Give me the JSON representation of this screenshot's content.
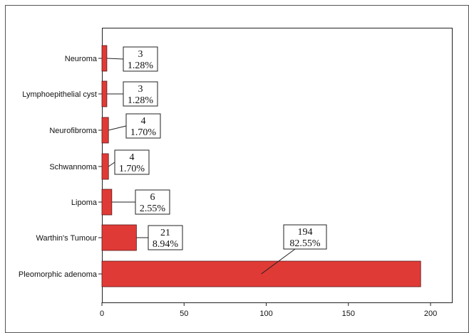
{
  "chart_data": {
    "type": "bar",
    "orientation": "horizontal",
    "categories": [
      "Neuroma",
      "Lymphoepithelial cyst",
      "Neurofibroma",
      "Schwannoma",
      "Lipoma",
      "Warthin's Tumour",
      "Pleomorphic adenoma"
    ],
    "values": [
      3,
      3,
      4,
      4,
      6,
      21,
      194
    ],
    "percent_labels": [
      "1.28%",
      "1.28%",
      "1.70%",
      "1.70%",
      "2.55%",
      "8.94%",
      "82.55%"
    ],
    "count_labels": [
      "3",
      "3",
      "4",
      "4",
      "6",
      "21",
      "194"
    ],
    "xlim": [
      0,
      213
    ],
    "xticks": [
      0,
      50,
      100,
      150,
      200
    ],
    "bar_color": "#e03a36",
    "grid": false
  }
}
